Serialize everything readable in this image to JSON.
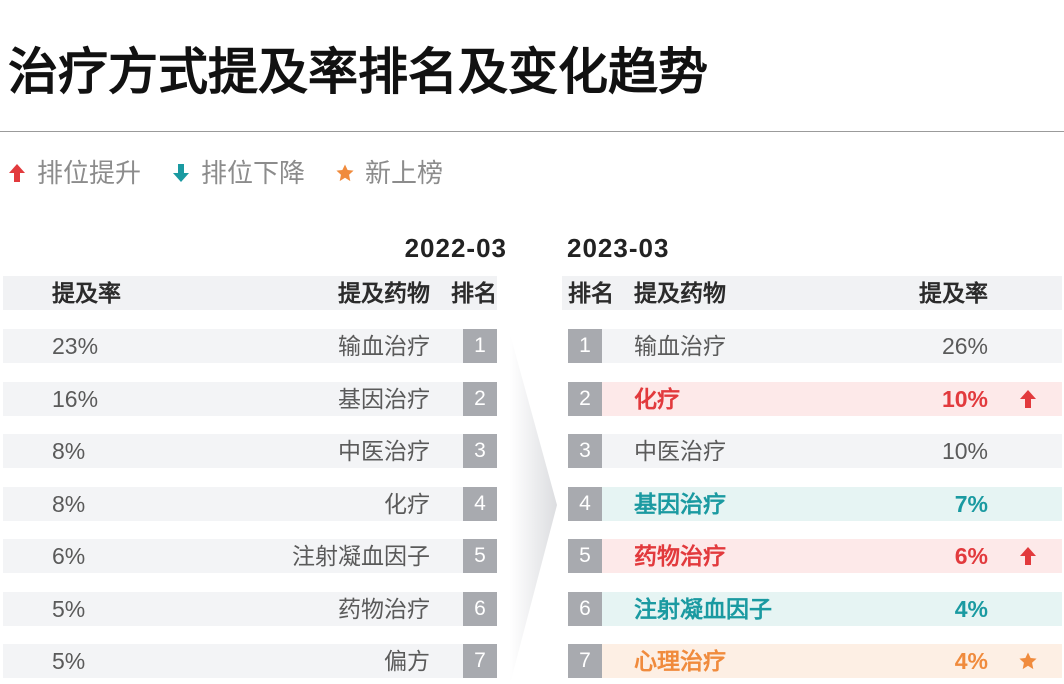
{
  "title": "治疗方式提及率排名及变化趋势",
  "legend": [
    {
      "icon": "arrow-up-icon",
      "color": "#e23a3d",
      "label": "排位提升"
    },
    {
      "icon": "arrow-down-icon",
      "color": "#1a9aa1",
      "label": "排位下降"
    },
    {
      "icon": "star-icon",
      "color": "#f08b3d",
      "label": "新上榜"
    }
  ],
  "colors": {
    "header_bg": "#f1f2f4",
    "row_bg": "#f3f4f6",
    "rank_badge": "#a8aaaf",
    "plain_text": "#5a5a5a"
  },
  "chart_data": {
    "type": "table",
    "tables": [
      {
        "period": "2022-03",
        "columns": [
          "提及率",
          "提及药物",
          "排名"
        ],
        "rows": [
          {
            "rate": "23%",
            "treatment": "输血治疗",
            "rank": 1
          },
          {
            "rate": "16%",
            "treatment": "基因治疗",
            "rank": 2
          },
          {
            "rate": "8%",
            "treatment": "中医治疗",
            "rank": 3
          },
          {
            "rate": "8%",
            "treatment": "化疗",
            "rank": 4
          },
          {
            "rate": "6%",
            "treatment": "注射凝血因子",
            "rank": 5
          },
          {
            "rate": "5%",
            "treatment": "药物治疗",
            "rank": 6
          },
          {
            "rate": "5%",
            "treatment": "偏方",
            "rank": 7
          }
        ]
      },
      {
        "period": "2023-03",
        "columns": [
          "排名",
          "提及药物",
          "提及率"
        ],
        "rows": [
          {
            "rank": 1,
            "treatment": "输血治疗",
            "rate": "26%",
            "highlight": false,
            "text_color": "#5a5a5a",
            "bg_color": "#f3f4f6",
            "marker": null
          },
          {
            "rank": 2,
            "treatment": "化疗",
            "rate": "10%",
            "highlight": true,
            "text_color": "#e23a3d",
            "bg_color": "#fde9e9",
            "marker": "arrow-up-icon"
          },
          {
            "rank": 3,
            "treatment": "中医治疗",
            "rate": "10%",
            "highlight": false,
            "text_color": "#5a5a5a",
            "bg_color": "#f3f4f6",
            "marker": null
          },
          {
            "rank": 4,
            "treatment": "基因治疗",
            "rate": "7%",
            "highlight": true,
            "text_color": "#1a9aa1",
            "bg_color": "#e6f4f3",
            "marker": null
          },
          {
            "rank": 5,
            "treatment": "药物治疗",
            "rate": "6%",
            "highlight": true,
            "text_color": "#e23a3d",
            "bg_color": "#fde9e9",
            "marker": "arrow-up-icon"
          },
          {
            "rank": 6,
            "treatment": "注射凝血因子",
            "rate": "4%",
            "highlight": true,
            "text_color": "#1a9aa1",
            "bg_color": "#e6f4f3",
            "marker": null
          },
          {
            "rank": 7,
            "treatment": "心理治疗",
            "rate": "4%",
            "highlight": true,
            "text_color": "#f08b3d",
            "bg_color": "#fdefe4",
            "marker": "star-icon"
          }
        ]
      }
    ]
  }
}
